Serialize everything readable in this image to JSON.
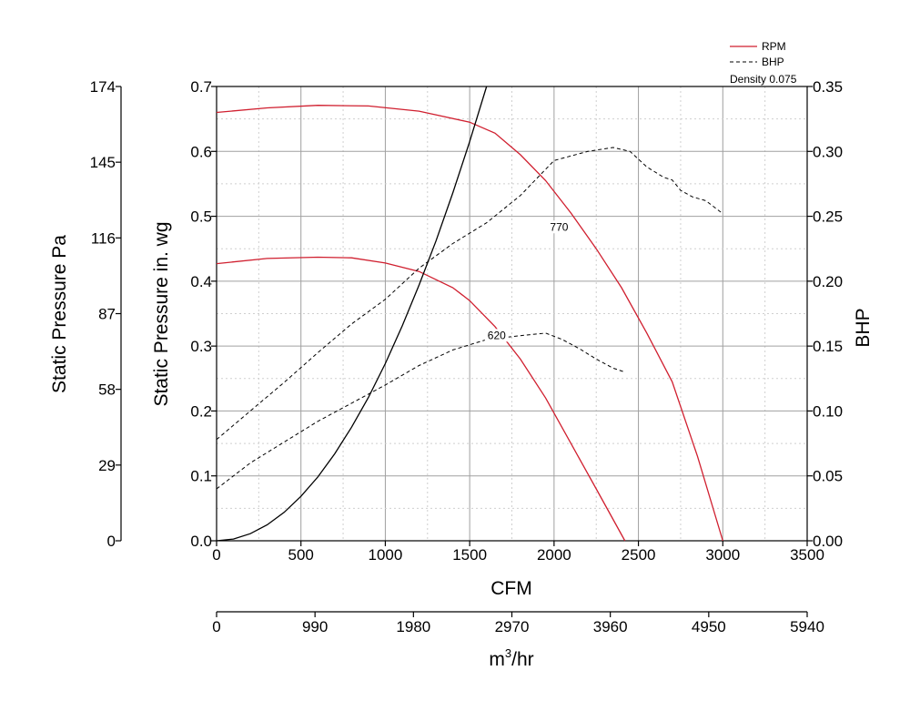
{
  "chart_data": {
    "type": "line",
    "title": "",
    "density_note": "Density 0.075",
    "legend": [
      {
        "label": "RPM",
        "style": "solid",
        "color": "#d01f2f"
      },
      {
        "label": "BHP",
        "style": "dashed",
        "color": "#000000"
      }
    ],
    "legend_placement": "top-right",
    "grid": true,
    "colors": {
      "rpm": "#d01f2f",
      "bhp": "#000000",
      "system": "#000000",
      "grid": "#a0a0a0"
    },
    "x_axis": {
      "label": "CFM",
      "range": [
        0,
        3500
      ],
      "ticks": [
        "0",
        "500",
        "1000",
        "1500",
        "2000",
        "2500",
        "3000",
        "3500"
      ]
    },
    "x2_axis": {
      "label_base": "m",
      "label_sup": "3",
      "label_rest": "/hr",
      "range": [
        0,
        5940
      ],
      "ticks": [
        "0",
        "990",
        "1980",
        "2970",
        "3960",
        "4950",
        "5940"
      ]
    },
    "y_axis": {
      "label": "Static Pressure in. wg",
      "range": [
        0,
        0.7
      ],
      "ticks": [
        "0.0",
        "0.1",
        "0.2",
        "0.3",
        "0.4",
        "0.5",
        "0.6",
        "0.7"
      ]
    },
    "y_pa_axis": {
      "label": "Static Pressure Pa",
      "range": [
        0,
        174
      ],
      "ticks": [
        "0",
        "29",
        "58",
        "87",
        "116",
        "145",
        "174"
      ]
    },
    "y_right_axis": {
      "label": "BHP",
      "range": [
        0,
        0.35
      ],
      "ticks": [
        "0.00",
        "0.05",
        "0.10",
        "0.15",
        "0.20",
        "0.25",
        "0.30",
        "0.35"
      ]
    },
    "series": [
      {
        "name": "770",
        "kind": "rpm",
        "axis": "left",
        "x": [
          0,
          300,
          600,
          900,
          1200,
          1500,
          1650,
          1800,
          1950,
          2100,
          2250,
          2400,
          2550,
          2700,
          2850,
          3000
        ],
        "y": [
          0.66,
          0.667,
          0.671,
          0.67,
          0.662,
          0.645,
          0.628,
          0.595,
          0.555,
          0.505,
          0.45,
          0.39,
          0.32,
          0.245,
          0.13,
          0.0
        ]
      },
      {
        "name": "620",
        "kind": "rpm",
        "axis": "left",
        "x": [
          0,
          300,
          600,
          800,
          1000,
          1200,
          1400,
          1500,
          1650,
          1800,
          1950,
          2100,
          2250,
          2420
        ],
        "y": [
          0.427,
          0.435,
          0.437,
          0.436,
          0.428,
          0.415,
          0.39,
          0.37,
          0.33,
          0.28,
          0.22,
          0.15,
          0.08,
          0.0
        ]
      },
      {
        "name": "",
        "kind": "bhp",
        "axis": "right",
        "x": [
          0,
          200,
          400,
          600,
          800,
          1000,
          1200,
          1400,
          1600,
          1800,
          2000,
          2200,
          2350,
          2450,
          2550,
          2650,
          2700,
          2750,
          2820,
          2900,
          3000
        ],
        "y": [
          0.078,
          0.1,
          0.122,
          0.145,
          0.167,
          0.186,
          0.21,
          0.229,
          0.245,
          0.266,
          0.293,
          0.3,
          0.303,
          0.3,
          0.288,
          0.28,
          0.278,
          0.27,
          0.265,
          0.262,
          0.252
        ]
      },
      {
        "name": "",
        "kind": "bhp",
        "axis": "right",
        "x": [
          0,
          200,
          400,
          600,
          800,
          1000,
          1200,
          1400,
          1600,
          1800,
          1950,
          2050,
          2150,
          2250,
          2350,
          2420
        ],
        "y": [
          0.04,
          0.06,
          0.076,
          0.092,
          0.106,
          0.12,
          0.135,
          0.147,
          0.155,
          0.158,
          0.16,
          0.155,
          0.148,
          0.14,
          0.133,
          0.13
        ]
      },
      {
        "name": "",
        "kind": "system",
        "axis": "left",
        "x": [
          0,
          100,
          200,
          300,
          400,
          500,
          600,
          700,
          800,
          900,
          1000,
          1100,
          1200,
          1300,
          1400,
          1500,
          1600
        ],
        "y": [
          0.0,
          0.00273,
          0.0109,
          0.0246,
          0.0437,
          0.0684,
          0.0984,
          0.134,
          0.175,
          0.221,
          0.273,
          0.331,
          0.394,
          0.462,
          0.536,
          0.615,
          0.7
        ]
      }
    ],
    "curve_labels": [
      {
        "text": "770",
        "x": 2030,
        "y": 0.478
      },
      {
        "text": "620",
        "x": 1660,
        "y": 0.311
      }
    ]
  }
}
